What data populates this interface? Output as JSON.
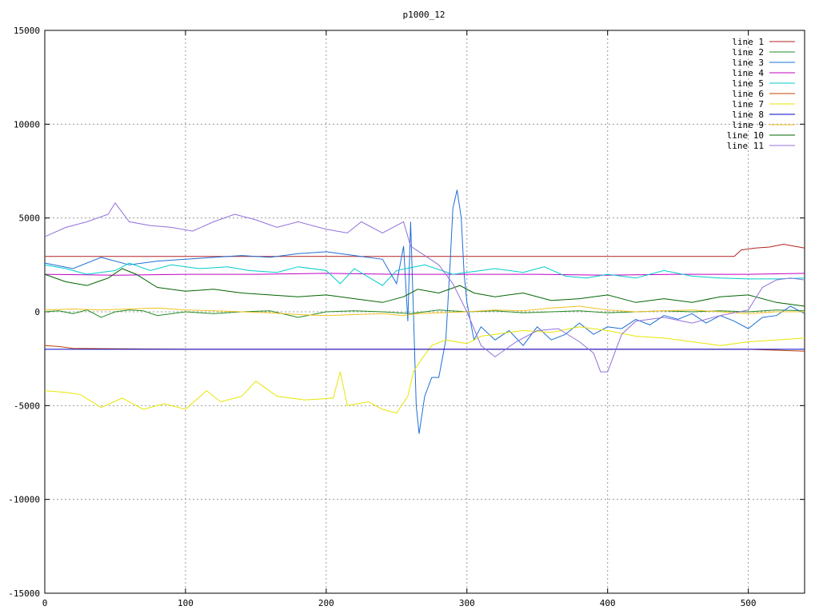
{
  "chart_data": {
    "type": "line",
    "title": "p1000_12",
    "xlabel": "",
    "ylabel": "",
    "xlim": [
      0,
      540
    ],
    "ylim": [
      -15000,
      15000
    ],
    "x_ticks": [
      0,
      100,
      200,
      300,
      400,
      500
    ],
    "y_ticks": [
      -15000,
      -10000,
      -5000,
      0,
      5000,
      10000,
      15000
    ],
    "grid": true,
    "legend_position": "top-right",
    "series": [
      {
        "name": "line 1",
        "color": "#b22222",
        "points": [
          [
            0,
            2950
          ],
          [
            100,
            2950
          ],
          [
            200,
            2950
          ],
          [
            300,
            2950
          ],
          [
            400,
            2950
          ],
          [
            490,
            2950
          ],
          [
            495,
            3300
          ],
          [
            505,
            3400
          ],
          [
            515,
            3450
          ],
          [
            525,
            3600
          ],
          [
            540,
            3400
          ]
        ]
      },
      {
        "name": "line 2",
        "color": "#228b22",
        "points": [
          [
            0,
            0
          ],
          [
            10,
            50
          ],
          [
            20,
            -100
          ],
          [
            30,
            100
          ],
          [
            40,
            -300
          ],
          [
            50,
            0
          ],
          [
            60,
            100
          ],
          [
            70,
            50
          ],
          [
            80,
            -200
          ],
          [
            100,
            0
          ],
          [
            120,
            -100
          ],
          [
            140,
            0
          ],
          [
            160,
            50
          ],
          [
            180,
            -300
          ],
          [
            200,
            0
          ],
          [
            220,
            50
          ],
          [
            240,
            0
          ],
          [
            260,
            -100
          ],
          [
            280,
            100
          ],
          [
            300,
            0
          ],
          [
            320,
            50
          ],
          [
            340,
            -50
          ],
          [
            360,
            0
          ],
          [
            380,
            50
          ],
          [
            400,
            -50
          ],
          [
            420,
            0
          ],
          [
            440,
            50
          ],
          [
            460,
            0
          ],
          [
            480,
            50
          ],
          [
            500,
            0
          ],
          [
            520,
            100
          ],
          [
            540,
            50
          ]
        ]
      },
      {
        "name": "line 3",
        "color": "#1e6fd6",
        "points": [
          [
            0,
            2600
          ],
          [
            20,
            2300
          ],
          [
            40,
            2900
          ],
          [
            60,
            2500
          ],
          [
            80,
            2700
          ],
          [
            100,
            2800
          ],
          [
            120,
            2900
          ],
          [
            140,
            3000
          ],
          [
            160,
            2900
          ],
          [
            180,
            3100
          ],
          [
            200,
            3200
          ],
          [
            220,
            3000
          ],
          [
            240,
            2800
          ],
          [
            250,
            1500
          ],
          [
            255,
            3500
          ],
          [
            258,
            -500
          ],
          [
            260,
            4800
          ],
          [
            262,
            0
          ],
          [
            264,
            -5000
          ],
          [
            266,
            -6500
          ],
          [
            270,
            -4500
          ],
          [
            275,
            -3500
          ],
          [
            280,
            -3500
          ],
          [
            285,
            -1500
          ],
          [
            288,
            2500
          ],
          [
            290,
            5500
          ],
          [
            293,
            6500
          ],
          [
            296,
            5000
          ],
          [
            298,
            2000
          ],
          [
            300,
            500
          ],
          [
            305,
            -1500
          ],
          [
            310,
            -800
          ],
          [
            320,
            -1500
          ],
          [
            330,
            -1000
          ],
          [
            340,
            -1800
          ],
          [
            350,
            -800
          ],
          [
            360,
            -1500
          ],
          [
            370,
            -1200
          ],
          [
            380,
            -600
          ],
          [
            390,
            -1200
          ],
          [
            400,
            -800
          ],
          [
            410,
            -900
          ],
          [
            420,
            -400
          ],
          [
            430,
            -700
          ],
          [
            440,
            -200
          ],
          [
            450,
            -400
          ],
          [
            460,
            -100
          ],
          [
            470,
            -600
          ],
          [
            480,
            -200
          ],
          [
            490,
            -500
          ],
          [
            500,
            -900
          ],
          [
            510,
            -300
          ],
          [
            520,
            -200
          ],
          [
            530,
            300
          ],
          [
            540,
            -100
          ]
        ]
      },
      {
        "name": "line 4",
        "color": "#c000c0",
        "points": [
          [
            0,
            2000
          ],
          [
            50,
            1950
          ],
          [
            100,
            2000
          ],
          [
            150,
            2000
          ],
          [
            200,
            2050
          ],
          [
            250,
            2000
          ],
          [
            300,
            2000
          ],
          [
            350,
            2000
          ],
          [
            400,
            1950
          ],
          [
            450,
            2000
          ],
          [
            500,
            2000
          ],
          [
            540,
            2050
          ]
        ]
      },
      {
        "name": "line 5",
        "color": "#00cccc",
        "points": [
          [
            0,
            2500
          ],
          [
            15,
            2300
          ],
          [
            30,
            2000
          ],
          [
            50,
            2200
          ],
          [
            60,
            2600
          ],
          [
            75,
            2200
          ],
          [
            90,
            2500
          ],
          [
            110,
            2300
          ],
          [
            130,
            2400
          ],
          [
            145,
            2200
          ],
          [
            165,
            2100
          ],
          [
            180,
            2400
          ],
          [
            200,
            2200
          ],
          [
            210,
            1500
          ],
          [
            220,
            2300
          ],
          [
            240,
            1400
          ],
          [
            250,
            2200
          ],
          [
            270,
            2500
          ],
          [
            290,
            2000
          ],
          [
            300,
            2100
          ],
          [
            320,
            2300
          ],
          [
            340,
            2100
          ],
          [
            355,
            2400
          ],
          [
            370,
            1900
          ],
          [
            385,
            1800
          ],
          [
            400,
            2000
          ],
          [
            420,
            1800
          ],
          [
            440,
            2200
          ],
          [
            460,
            1900
          ],
          [
            480,
            1800
          ],
          [
            500,
            1750
          ],
          [
            520,
            1750
          ],
          [
            540,
            1800
          ]
        ]
      },
      {
        "name": "line 6",
        "color": "#c04000",
        "points": [
          [
            0,
            -1800
          ],
          [
            10,
            -1850
          ],
          [
            20,
            -1950
          ],
          [
            100,
            -2000
          ],
          [
            200,
            -2000
          ],
          [
            300,
            -2000
          ],
          [
            400,
            -2000
          ],
          [
            500,
            -2000
          ],
          [
            540,
            -2100
          ]
        ]
      },
      {
        "name": "line 7",
        "color": "#e6e600",
        "points": [
          [
            0,
            -4200
          ],
          [
            15,
            -4300
          ],
          [
            25,
            -4400
          ],
          [
            40,
            -5100
          ],
          [
            55,
            -4600
          ],
          [
            70,
            -5200
          ],
          [
            85,
            -4900
          ],
          [
            100,
            -5200
          ],
          [
            115,
            -4200
          ],
          [
            125,
            -4800
          ],
          [
            140,
            -4500
          ],
          [
            150,
            -3700
          ],
          [
            165,
            -4500
          ],
          [
            185,
            -4700
          ],
          [
            205,
            -4600
          ],
          [
            210,
            -3200
          ],
          [
            215,
            -5000
          ],
          [
            230,
            -4800
          ],
          [
            240,
            -5200
          ],
          [
            250,
            -5400
          ],
          [
            258,
            -4500
          ],
          [
            262,
            -3200
          ],
          [
            268,
            -2500
          ],
          [
            275,
            -1800
          ],
          [
            285,
            -1500
          ],
          [
            300,
            -1700
          ],
          [
            310,
            -1300
          ],
          [
            320,
            -1200
          ],
          [
            340,
            -1000
          ],
          [
            360,
            -1100
          ],
          [
            380,
            -800
          ],
          [
            400,
            -1000
          ],
          [
            420,
            -1300
          ],
          [
            440,
            -1400
          ],
          [
            460,
            -1600
          ],
          [
            480,
            -1800
          ],
          [
            500,
            -1600
          ],
          [
            520,
            -1500
          ],
          [
            540,
            -1400
          ]
        ]
      },
      {
        "name": "line 8",
        "color": "#0000cc",
        "points": [
          [
            0,
            -2000
          ],
          [
            100,
            -2000
          ],
          [
            200,
            -2000
          ],
          [
            300,
            -2000
          ],
          [
            400,
            -2000
          ],
          [
            500,
            -2000
          ],
          [
            540,
            -2000
          ]
        ]
      },
      {
        "name": "line 9",
        "color": "#f0c020",
        "points": [
          [
            0,
            100
          ],
          [
            20,
            150
          ],
          [
            40,
            100
          ],
          [
            60,
            150
          ],
          [
            80,
            200
          ],
          [
            100,
            100
          ],
          [
            120,
            50
          ],
          [
            140,
            0
          ],
          [
            160,
            -50
          ],
          [
            180,
            -150
          ],
          [
            200,
            -200
          ],
          [
            220,
            -150
          ],
          [
            240,
            -100
          ],
          [
            255,
            -200
          ],
          [
            265,
            -100
          ],
          [
            280,
            -50
          ],
          [
            300,
            0
          ],
          [
            320,
            100
          ],
          [
            340,
            50
          ],
          [
            360,
            200
          ],
          [
            380,
            300
          ],
          [
            400,
            100
          ],
          [
            420,
            0
          ],
          [
            440,
            50
          ],
          [
            460,
            100
          ],
          [
            480,
            0
          ],
          [
            500,
            -100
          ],
          [
            520,
            0
          ],
          [
            540,
            0
          ]
        ]
      },
      {
        "name": "line 10",
        "color": "#006400",
        "points": [
          [
            0,
            2000
          ],
          [
            15,
            1600
          ],
          [
            30,
            1400
          ],
          [
            45,
            1800
          ],
          [
            55,
            2300
          ],
          [
            65,
            2000
          ],
          [
            80,
            1300
          ],
          [
            100,
            1100
          ],
          [
            120,
            1200
          ],
          [
            140,
            1000
          ],
          [
            160,
            900
          ],
          [
            180,
            800
          ],
          [
            200,
            900
          ],
          [
            220,
            700
          ],
          [
            240,
            500
          ],
          [
            255,
            800
          ],
          [
            265,
            1200
          ],
          [
            280,
            1000
          ],
          [
            295,
            1400
          ],
          [
            305,
            1000
          ],
          [
            320,
            800
          ],
          [
            340,
            1000
          ],
          [
            360,
            600
          ],
          [
            380,
            700
          ],
          [
            400,
            900
          ],
          [
            420,
            500
          ],
          [
            440,
            700
          ],
          [
            460,
            500
          ],
          [
            480,
            800
          ],
          [
            500,
            900
          ],
          [
            520,
            500
          ],
          [
            540,
            300
          ]
        ]
      },
      {
        "name": "line 11",
        "color": "#9370db",
        "points": [
          [
            0,
            4000
          ],
          [
            15,
            4500
          ],
          [
            30,
            4800
          ],
          [
            45,
            5200
          ],
          [
            50,
            5800
          ],
          [
            60,
            4800
          ],
          [
            75,
            4600
          ],
          [
            90,
            4500
          ],
          [
            105,
            4300
          ],
          [
            120,
            4800
          ],
          [
            135,
            5200
          ],
          [
            150,
            4900
          ],
          [
            165,
            4500
          ],
          [
            180,
            4800
          ],
          [
            200,
            4400
          ],
          [
            215,
            4200
          ],
          [
            225,
            4800
          ],
          [
            240,
            4200
          ],
          [
            255,
            4800
          ],
          [
            260,
            3500
          ],
          [
            270,
            3000
          ],
          [
            280,
            2500
          ],
          [
            290,
            1500
          ],
          [
            300,
            0
          ],
          [
            310,
            -1800
          ],
          [
            320,
            -2400
          ],
          [
            335,
            -1600
          ],
          [
            350,
            -1000
          ],
          [
            365,
            -900
          ],
          [
            380,
            -1600
          ],
          [
            390,
            -2200
          ],
          [
            395,
            -3200
          ],
          [
            400,
            -3200
          ],
          [
            410,
            -1200
          ],
          [
            420,
            -500
          ],
          [
            440,
            -300
          ],
          [
            460,
            -600
          ],
          [
            480,
            -200
          ],
          [
            500,
            100
          ],
          [
            510,
            1300
          ],
          [
            520,
            1700
          ],
          [
            530,
            1800
          ],
          [
            540,
            1700
          ]
        ]
      }
    ]
  }
}
